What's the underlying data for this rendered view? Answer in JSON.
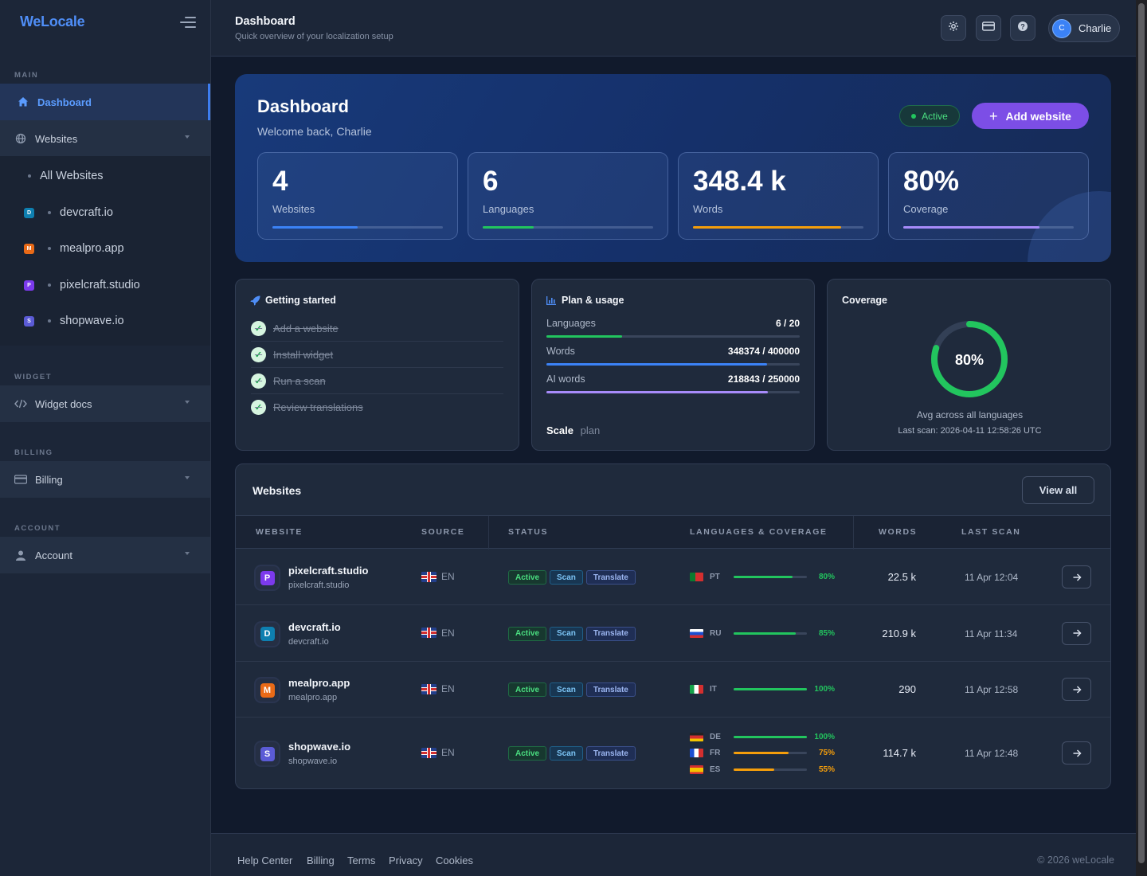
{
  "brand": "WeLocale",
  "sidebar": {
    "sections": {
      "main": "MAIN",
      "widget": "WIDGET",
      "billing": "BILLING",
      "account": "ACCOUNT"
    },
    "dashboard": "Dashboard",
    "websites": "Websites",
    "all_websites": "All Websites",
    "sites": [
      {
        "badge": "D",
        "label": "devcraft.io",
        "color": "#0e7fb0"
      },
      {
        "badge": "M",
        "label": "mealpro.app",
        "color": "#ea6a17"
      },
      {
        "badge": "P",
        "label": "pixelcraft.studio",
        "color": "#7c3aed"
      },
      {
        "badge": "S",
        "label": "shopwave.io",
        "color": "#5b5bd6"
      }
    ],
    "widget_docs": "Widget docs",
    "billing": "Billing",
    "account": "Account"
  },
  "topbar": {
    "title": "Dashboard",
    "subtitle": "Quick overview of your localization setup",
    "user_initial": "C",
    "user_name": "Charlie",
    "icons": [
      "settings-icon",
      "credit-card-icon",
      "help-icon"
    ]
  },
  "hero": {
    "title": "Dashboard",
    "subtitle": "Welcome back, Charlie",
    "status": "Active",
    "add_button": "Add website",
    "stats": [
      {
        "value": "4",
        "label": "Websites",
        "fill": 0.5,
        "color": "#3b82f6"
      },
      {
        "value": "6",
        "label": "Languages",
        "fill": 0.3,
        "color": "#22c55e"
      },
      {
        "value": "348.4 k",
        "label": "Words",
        "fill": 0.87,
        "color": "#f59e0b"
      },
      {
        "value": "80%",
        "label": "Coverage",
        "fill": 0.8,
        "color": "#a78bfa"
      }
    ]
  },
  "getting_started": {
    "title": "Getting started",
    "tasks": [
      "Add a website",
      "Install widget",
      "Run a scan",
      "Review translations"
    ]
  },
  "plan": {
    "title": "Plan & usage",
    "rows": [
      {
        "label": "Languages",
        "value": "6 / 20",
        "fill": 0.3,
        "color": "#22c55e"
      },
      {
        "label": "Words",
        "value": "348374 / 400000",
        "fill": 0.87,
        "color": "#3b82f6"
      },
      {
        "label": "AI words",
        "value": "218843 / 250000",
        "fill": 0.875,
        "color": "#a78bfa"
      }
    ],
    "plan_name": "Scale",
    "plan_suffix": "plan"
  },
  "coverage": {
    "title": "Coverage",
    "percent_label": "80%",
    "percent": 0.8,
    "caption": "Avg across all languages",
    "last_scan": "Last scan: 2026-04-11 12:58:26 UTC"
  },
  "websites": {
    "title": "Websites",
    "view_all": "View all",
    "columns": [
      "WEBSITE",
      "SOURCE",
      "STATUS",
      "LANGUAGES & COVERAGE",
      "WORDS",
      "LAST SCAN"
    ],
    "tags": [
      "Active",
      "Scan",
      "Translate"
    ],
    "rows": [
      {
        "badge": "P",
        "color": "#7c3aed",
        "name": "pixelcraft.studio",
        "domain": "pixelcraft.studio",
        "source": "EN",
        "words": "22.5 k",
        "last_scan": "11 Apr 12:04",
        "langs": [
          {
            "code": "PT",
            "flag": "pt",
            "pct": "80%",
            "fill": 0.8,
            "color": "#22c55e"
          }
        ]
      },
      {
        "badge": "D",
        "color": "#0e7fb0",
        "name": "devcraft.io",
        "domain": "devcraft.io",
        "source": "EN",
        "words": "210.9 k",
        "last_scan": "11 Apr 11:34",
        "langs": [
          {
            "code": "RU",
            "flag": "ru",
            "pct": "85%",
            "fill": 0.85,
            "color": "#22c55e"
          }
        ]
      },
      {
        "badge": "M",
        "color": "#ea6a17",
        "name": "mealpro.app",
        "domain": "mealpro.app",
        "source": "EN",
        "words": "290",
        "last_scan": "11 Apr 12:58",
        "langs": [
          {
            "code": "IT",
            "flag": "it",
            "pct": "100%",
            "fill": 1.0,
            "color": "#22c55e"
          }
        ]
      },
      {
        "badge": "S",
        "color": "#5b5bd6",
        "name": "shopwave.io",
        "domain": "shopwave.io",
        "source": "EN",
        "words": "114.7 k",
        "last_scan": "11 Apr 12:48",
        "langs": [
          {
            "code": "DE",
            "flag": "de",
            "pct": "100%",
            "fill": 1.0,
            "color": "#22c55e"
          },
          {
            "code": "FR",
            "flag": "fr",
            "pct": "75%",
            "fill": 0.75,
            "color": "#f59e0b"
          },
          {
            "code": "ES",
            "flag": "es",
            "pct": "55%",
            "fill": 0.55,
            "color": "#f59e0b"
          }
        ]
      }
    ]
  },
  "footer": {
    "links": [
      "Help Center",
      "Billing",
      "Terms",
      "Privacy",
      "Cookies"
    ],
    "copyright": "© 2026 weLocale"
  }
}
